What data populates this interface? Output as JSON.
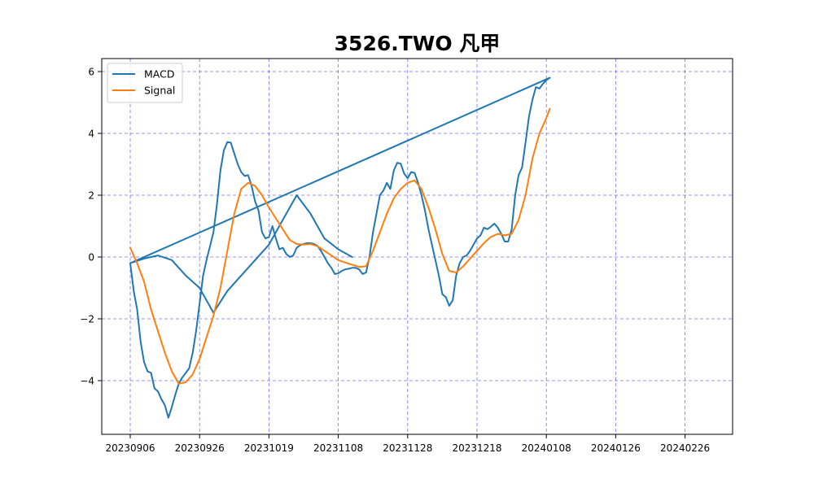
{
  "chart_data": {
    "type": "line",
    "title": "3526.TWO 凡甲",
    "xlabel": "",
    "ylabel": "",
    "ylim": [
      -5.7,
      6.4
    ],
    "x_ticks": [
      "20230906",
      "20230926",
      "20231019",
      "20231108",
      "20231128",
      "20231218",
      "20240108",
      "20240126",
      "20240226"
    ],
    "y_ticks": [
      6,
      4,
      2,
      0,
      -2,
      -4
    ],
    "y_tick_labels": [
      "6",
      "4",
      "2",
      "0",
      "−2",
      "−4"
    ],
    "grid": true,
    "grid_color": "#0000ff",
    "legend_position": "top-left",
    "series": [
      {
        "name": "MACD",
        "color": "#1f77b4",
        "points": [
          [
            0.0,
            -0.2
          ],
          [
            0.05,
            -1.1
          ],
          [
            0.1,
            -1.7
          ],
          [
            0.15,
            -2.75
          ],
          [
            0.2,
            -3.4
          ],
          [
            0.25,
            -3.7
          ],
          [
            0.3,
            -3.75
          ],
          [
            0.35,
            -4.25
          ],
          [
            0.4,
            -4.35
          ],
          [
            0.45,
            -4.6
          ],
          [
            0.5,
            -4.8
          ],
          [
            0.55,
            -5.2
          ],
          [
            0.6,
            -4.85
          ],
          [
            0.65,
            -4.45
          ],
          [
            0.7,
            -4.1
          ],
          [
            0.75,
            -3.9
          ],
          [
            0.8,
            -3.75
          ],
          [
            0.85,
            -3.6
          ],
          [
            0.9,
            -3.1
          ],
          [
            0.95,
            -2.4
          ],
          [
            1.0,
            -1.5
          ],
          [
            1.05,
            -0.6
          ],
          [
            1.1,
            -0.1
          ],
          [
            1.15,
            0.35
          ],
          [
            1.2,
            0.8
          ],
          [
            1.25,
            1.7
          ],
          [
            1.3,
            2.8
          ],
          [
            1.35,
            3.45
          ],
          [
            1.4,
            3.72
          ],
          [
            1.45,
            3.7
          ],
          [
            1.5,
            3.35
          ],
          [
            1.55,
            3.0
          ],
          [
            1.6,
            2.75
          ],
          [
            1.65,
            2.62
          ],
          [
            1.7,
            2.65
          ],
          [
            1.75,
            2.3
          ],
          [
            1.8,
            1.8
          ],
          [
            1.85,
            1.5
          ],
          [
            1.9,
            0.8
          ],
          [
            1.95,
            0.6
          ],
          [
            2.0,
            0.65
          ],
          [
            2.05,
            1.0
          ],
          [
            2.1,
            0.6
          ],
          [
            2.15,
            0.25
          ],
          [
            2.2,
            0.3
          ],
          [
            2.25,
            0.1
          ],
          [
            2.3,
            0.0
          ],
          [
            2.35,
            0.05
          ],
          [
            2.4,
            0.3
          ],
          [
            2.45,
            0.38
          ],
          [
            2.5,
            0.42
          ],
          [
            2.55,
            0.45
          ],
          [
            2.6,
            0.45
          ],
          [
            2.65,
            0.42
          ],
          [
            2.7,
            0.36
          ],
          [
            2.75,
            0.2
          ],
          [
            2.8,
            0.0
          ],
          [
            2.85,
            -0.2
          ],
          [
            2.9,
            -0.35
          ],
          [
            2.95,
            -0.55
          ],
          [
            3.0,
            -0.53
          ],
          [
            3.05,
            -0.45
          ],
          [
            3.1,
            -0.4
          ],
          [
            3.15,
            -0.38
          ],
          [
            3.2,
            -0.35
          ],
          [
            3.25,
            -0.35
          ],
          [
            3.3,
            -0.4
          ],
          [
            3.35,
            -0.55
          ],
          [
            3.4,
            -0.5
          ],
          [
            3.45,
            0.0
          ],
          [
            3.5,
            0.8
          ],
          [
            3.55,
            1.4
          ],
          [
            3.6,
            2.0
          ],
          [
            3.65,
            2.15
          ],
          [
            3.7,
            2.4
          ],
          [
            3.75,
            2.2
          ],
          [
            3.8,
            2.8
          ],
          [
            3.85,
            3.05
          ],
          [
            3.9,
            3.02
          ],
          [
            3.95,
            2.7
          ],
          [
            4.0,
            2.55
          ],
          [
            4.05,
            2.75
          ],
          [
            4.1,
            2.72
          ],
          [
            4.15,
            2.4
          ],
          [
            4.2,
            2.0
          ],
          [
            4.25,
            1.5
          ],
          [
            4.3,
            0.9
          ],
          [
            4.35,
            0.4
          ],
          [
            4.4,
            -0.1
          ],
          [
            4.45,
            -0.6
          ],
          [
            4.5,
            -1.2
          ],
          [
            4.55,
            -1.3
          ],
          [
            4.6,
            -1.58
          ],
          [
            4.65,
            -1.4
          ],
          [
            4.7,
            -0.6
          ],
          [
            4.75,
            -0.2
          ],
          [
            4.8,
            0.0
          ],
          [
            4.85,
            0.05
          ],
          [
            4.9,
            0.2
          ],
          [
            4.95,
            0.4
          ],
          [
            5.0,
            0.6
          ],
          [
            5.05,
            0.7
          ],
          [
            5.1,
            0.95
          ],
          [
            5.15,
            0.9
          ],
          [
            5.2,
            0.98
          ],
          [
            5.25,
            1.08
          ],
          [
            5.3,
            0.95
          ],
          [
            5.35,
            0.75
          ],
          [
            5.4,
            0.5
          ],
          [
            5.45,
            0.5
          ],
          [
            5.5,
            0.9
          ],
          [
            5.55,
            2.0
          ],
          [
            5.6,
            2.65
          ],
          [
            5.65,
            2.9
          ],
          [
            5.7,
            3.7
          ],
          [
            5.75,
            4.55
          ],
          [
            5.8,
            5.1
          ],
          [
            5.85,
            5.5
          ],
          [
            5.9,
            5.45
          ],
          [
            5.95,
            5.6
          ],
          [
            6.0,
            5.72
          ],
          [
            6.05,
            5.8
          ],
          [
            6.05,
            5.8
          ],
          [
            6.05,
            5.8
          ],
          [
            0.0,
            -0.2
          ],
          [
            0.2,
            -0.05
          ],
          [
            0.4,
            0.05
          ],
          [
            0.6,
            -0.1
          ],
          [
            0.8,
            -0.6
          ],
          [
            1.0,
            -1.0
          ],
          [
            1.2,
            -1.8
          ],
          [
            1.4,
            -1.1
          ],
          [
            1.6,
            -0.6
          ],
          [
            1.8,
            -0.1
          ],
          [
            2.0,
            0.4
          ],
          [
            2.2,
            1.2
          ],
          [
            2.4,
            2.0
          ],
          [
            2.6,
            1.4
          ],
          [
            2.8,
            0.6
          ],
          [
            3.0,
            0.25
          ],
          [
            3.2,
            0.0
          ]
        ]
      },
      {
        "name": "Signal",
        "color": "#ff7f0e",
        "points": [
          [
            0.0,
            0.3
          ],
          [
            0.1,
            -0.2
          ],
          [
            0.2,
            -0.8
          ],
          [
            0.3,
            -1.7
          ],
          [
            0.4,
            -2.4
          ],
          [
            0.5,
            -3.1
          ],
          [
            0.6,
            -3.7
          ],
          [
            0.7,
            -4.1
          ],
          [
            0.8,
            -4.05
          ],
          [
            0.9,
            -3.8
          ],
          [
            1.0,
            -3.3
          ],
          [
            1.1,
            -2.6
          ],
          [
            1.2,
            -1.9
          ],
          [
            1.3,
            -1.0
          ],
          [
            1.4,
            0.2
          ],
          [
            1.5,
            1.4
          ],
          [
            1.6,
            2.2
          ],
          [
            1.7,
            2.4
          ],
          [
            1.8,
            2.3
          ],
          [
            1.9,
            2.0
          ],
          [
            2.0,
            1.6
          ],
          [
            2.1,
            1.25
          ],
          [
            2.2,
            0.9
          ],
          [
            2.3,
            0.55
          ],
          [
            2.4,
            0.42
          ],
          [
            2.5,
            0.4
          ],
          [
            2.6,
            0.42
          ],
          [
            2.7,
            0.35
          ],
          [
            2.8,
            0.2
          ],
          [
            2.9,
            0.05
          ],
          [
            3.0,
            -0.1
          ],
          [
            3.1,
            -0.18
          ],
          [
            3.2,
            -0.25
          ],
          [
            3.3,
            -0.32
          ],
          [
            3.4,
            -0.3
          ],
          [
            3.5,
            0.2
          ],
          [
            3.6,
            0.8
          ],
          [
            3.7,
            1.4
          ],
          [
            3.8,
            1.9
          ],
          [
            3.9,
            2.2
          ],
          [
            4.0,
            2.4
          ],
          [
            4.1,
            2.48
          ],
          [
            4.2,
            2.2
          ],
          [
            4.3,
            1.6
          ],
          [
            4.4,
            0.9
          ],
          [
            4.5,
            0.1
          ],
          [
            4.6,
            -0.45
          ],
          [
            4.7,
            -0.5
          ],
          [
            4.8,
            -0.3
          ],
          [
            4.9,
            -0.05
          ],
          [
            5.0,
            0.2
          ],
          [
            5.1,
            0.45
          ],
          [
            5.2,
            0.65
          ],
          [
            5.3,
            0.75
          ],
          [
            5.4,
            0.7
          ],
          [
            5.5,
            0.75
          ],
          [
            5.6,
            1.2
          ],
          [
            5.7,
            2.0
          ],
          [
            5.8,
            3.2
          ],
          [
            5.9,
            4.0
          ],
          [
            6.0,
            4.5
          ],
          [
            6.05,
            4.8
          ]
        ]
      }
    ]
  }
}
